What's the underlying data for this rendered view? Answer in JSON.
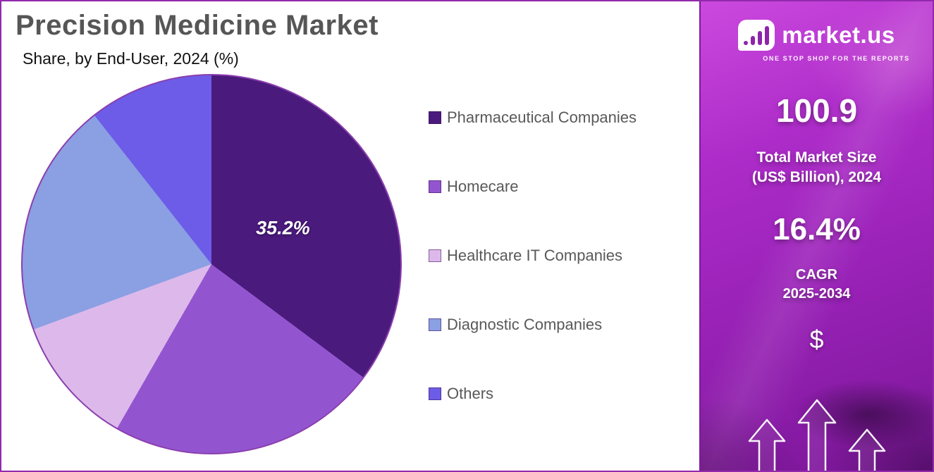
{
  "page": {
    "title": "Precision Medicine Market",
    "subtitle": "Share, by End-User, 2024 (%)"
  },
  "chart_data": {
    "type": "pie",
    "title": "Precision Medicine Market",
    "subtitle": "Share, by End-User, 2024 (%)",
    "labels": [
      "Pharmaceutical Companies",
      "Homecare",
      "Healthcare IT Companies",
      "Diagnostic Companies",
      "Others"
    ],
    "values": [
      35.2,
      23.1,
      11.1,
      20.0,
      10.6
    ],
    "colors": [
      "#4a1a7c",
      "#9355cf",
      "#dcb9ea",
      "#8b9fe3",
      "#6c5ce7"
    ],
    "data_label": "35.2%",
    "data_label_slice": "Pharmaceutical Companies",
    "start_angle_deg": 0,
    "direction": "clockwise",
    "legend_position": "right"
  },
  "sidebar": {
    "logo_text": "market.us",
    "logo_tagline": "ONE STOP SHOP FOR THE REPORTS",
    "market_size_value": "100.9",
    "market_size_label_line1": "Total Market Size",
    "market_size_label_line2": "(US$ Billion), 2024",
    "cagr_value": "16.4%",
    "cagr_label_line1": "CAGR",
    "cagr_label_line2": "2025-2034",
    "currency_symbol": "$",
    "accent_color": "#a62bc6"
  }
}
